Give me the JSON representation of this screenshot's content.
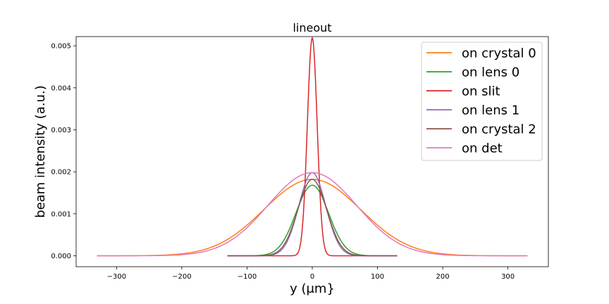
{
  "chart_data": {
    "type": "line",
    "title": "lineout",
    "xlabel": "y (μm}",
    "ylabel": "beam intensity (a.u.)",
    "xlim": [
      -362,
      362
    ],
    "ylim": [
      -0.00026,
      0.00522
    ],
    "xticks": [
      -300,
      -200,
      -100,
      0,
      100,
      200,
      300
    ],
    "xtick_labels": [
      "−300",
      "−200",
      "−100",
      "0",
      "100",
      "200",
      "300"
    ],
    "yticks": [
      0,
      0.001,
      0.002,
      0.003,
      0.004,
      0.005
    ],
    "ytick_labels": [
      "0.000",
      "0.001",
      "0.002",
      "0.003",
      "0.004",
      "0.005"
    ],
    "grid": false,
    "legend_position": "upper right",
    "series": [
      {
        "name": "on crystal 0",
        "color": "#ff7f0e",
        "shape": "gaussian",
        "peak": 0.00182,
        "center": 0,
        "sigma": 74,
        "x_range": [
          -330,
          330
        ]
      },
      {
        "name": "on lens 0",
        "color": "#2ca02c",
        "shape": "gaussian",
        "peak": 0.00168,
        "center": 0,
        "sigma": 25,
        "x_range": [
          -130,
          130
        ]
      },
      {
        "name": "on slit",
        "color": "#d62728",
        "shape": "gaussian",
        "peak": 0.00519,
        "center": 0,
        "sigma": 7.5,
        "x_range": [
          -130,
          130
        ]
      },
      {
        "name": "on lens 1",
        "color": "#9467bd",
        "shape": "gaussian",
        "peak": 0.00198,
        "center": 0,
        "sigma": 20.5,
        "x_range": [
          -130,
          130
        ]
      },
      {
        "name": "on crystal 2",
        "color": "#8c564b",
        "shape": "gaussian",
        "peak": 0.00182,
        "center": 0,
        "sigma": 22,
        "x_range": [
          -130,
          130
        ]
      },
      {
        "name": "on det",
        "color": "#e377c2",
        "shape": "gaussian",
        "peak": 0.00198,
        "center": 0,
        "sigma": 68,
        "x_range": [
          -330,
          330
        ]
      }
    ]
  }
}
